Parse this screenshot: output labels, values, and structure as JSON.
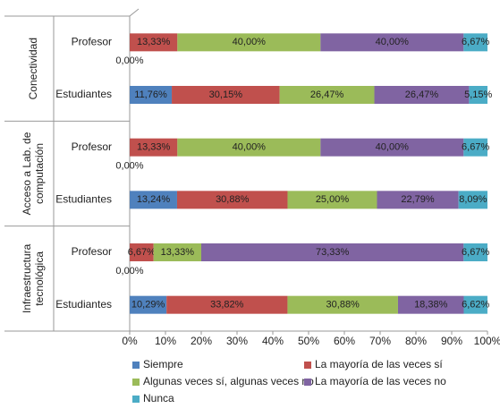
{
  "chart_data": {
    "type": "stacked-bar-horizontal",
    "categories": [
      "Profesor",
      "Estudiantes",
      "Profesor",
      "Estudiantes",
      "Profesor",
      "Estudiantes"
    ],
    "groups": [
      [
        "Conectividad"
      ],
      [
        "Acceso a Lab. de",
        "computación"
      ],
      [
        "Infraestructura",
        "tecnológica"
      ]
    ],
    "series": [
      {
        "name": "Siempre",
        "color": "#4f81bd",
        "values": [
          0,
          11.76,
          0,
          13.24,
          0,
          10.29
        ],
        "value_labels": [
          "0,00%",
          "11,76%",
          "0,00%",
          "13,24%",
          "0,00%",
          "10,29%"
        ]
      },
      {
        "name": "La mayoría de las veces sí",
        "color": "#c0504d",
        "values": [
          13.33,
          30.15,
          13.33,
          30.88,
          6.67,
          33.82
        ],
        "value_labels": [
          "13,33%",
          "30,15%",
          "13,33%",
          "30,88%",
          "6,67%",
          "33,82%"
        ]
      },
      {
        "name": "Algunas veces sí, algunas veces no",
        "color": "#9bbb59",
        "values": [
          40,
          26.47,
          40,
          25,
          13.33,
          30.88
        ],
        "value_labels": [
          "40,00%",
          "26,47%",
          "40,00%",
          "25,00%",
          "13,33%",
          "30,88%"
        ]
      },
      {
        "name": "La mayoría de las veces no",
        "color": "#8064a2",
        "values": [
          40,
          26.47,
          40,
          22.79,
          73.33,
          18.38
        ],
        "value_labels": [
          "40,00%",
          "26,47%",
          "40,00%",
          "22,79%",
          "73,33%",
          "18,38%"
        ]
      },
      {
        "name": "Nunca",
        "color": "#4bacc6",
        "values": [
          6.67,
          5.15,
          6.67,
          8.09,
          6.67,
          6.62
        ],
        "value_labels": [
          "6,67%",
          "5,15%",
          "6,67%",
          "8,09%",
          "6,67%",
          "6,62%"
        ]
      }
    ],
    "xlim": [
      0,
      100
    ],
    "xticks": [
      {
        "value": 0,
        "label": "0%"
      },
      {
        "value": 10,
        "label": "10%"
      },
      {
        "value": 20,
        "label": "20%"
      },
      {
        "value": 30,
        "label": "30%"
      },
      {
        "value": 40,
        "label": "40%"
      },
      {
        "value": 50,
        "label": "50%"
      },
      {
        "value": 60,
        "label": "60%"
      },
      {
        "value": 70,
        "label": "70%"
      },
      {
        "value": 80,
        "label": "80%"
      },
      {
        "value": 90,
        "label": "90%"
      },
      {
        "value": 100,
        "label": "100%"
      }
    ]
  }
}
